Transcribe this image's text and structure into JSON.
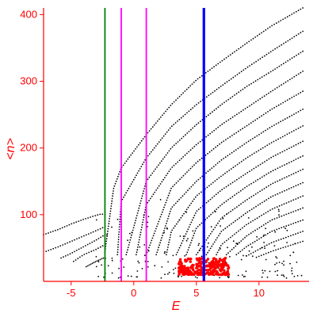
{
  "chart_data": {
    "type": "scatter",
    "title": "",
    "xlabel": "E",
    "ylabel": "<n>",
    "xlim": [
      -7.2,
      14
    ],
    "ylim": [
      0,
      410
    ],
    "grid": false,
    "legend": "none",
    "xticks": [
      -5,
      0,
      5,
      10
    ],
    "xtick_labels": [
      "-5",
      "0",
      "5",
      "10"
    ],
    "yticks": [
      100,
      200,
      300,
      400
    ],
    "ytick_labels": [
      "100",
      "200",
      "300",
      "400"
    ],
    "colors": {
      "axis": "#ff0000",
      "points": "#000000",
      "highlight_points": "#ff0000",
      "line_green": "#008000",
      "line_magenta": "#ff00ff",
      "line_blue": "#0000ff"
    },
    "vertical_lines": [
      {
        "x": -2.3,
        "color": "#008000"
      },
      {
        "x": -1.0,
        "color": "#ff00ff"
      },
      {
        "x": 1.0,
        "color": "#ff00ff"
      },
      {
        "x": 5.6,
        "color": "#0000ff"
      }
    ],
    "series": [
      {
        "x": [
          -7.2,
          -6,
          -5,
          -4,
          -3,
          -2.6,
          -2.3
        ],
        "values": [
          70,
          78,
          86,
          93,
          99,
          101,
          100
        ]
      },
      {
        "x": [
          -7.0,
          -6,
          -5,
          -4,
          -3,
          -2.3
        ],
        "values": [
          45,
          52,
          60,
          68,
          76,
          82
        ]
      },
      {
        "x": [
          -5.8,
          -5,
          -4,
          -3,
          -2.3
        ],
        "values": [
          35,
          42,
          52,
          62,
          70
        ]
      },
      {
        "x": [
          -4.8,
          -4,
          -3,
          -2.3
        ],
        "values": [
          30,
          40,
          48,
          55
        ]
      },
      {
        "x": [
          -3.8,
          -3,
          -2.3
        ],
        "values": [
          22,
          30,
          36
        ]
      },
      {
        "x": [
          -2.3,
          -1.6,
          -1,
          1,
          3,
          5,
          7,
          9,
          11,
          13.5
        ],
        "values": [
          45,
          140,
          170,
          220,
          265,
          302,
          330,
          357,
          383,
          410
        ]
      },
      {
        "x": [
          -1.3,
          -1,
          1,
          3,
          5,
          7,
          9,
          11,
          13.5
        ],
        "values": [
          40,
          120,
          185,
          232,
          265,
          293,
          320,
          345,
          375
        ]
      },
      {
        "x": [
          -0.6,
          1,
          3,
          5,
          7,
          9,
          11,
          13.5
        ],
        "values": [
          40,
          150,
          200,
          235,
          265,
          292,
          315,
          345
        ]
      },
      {
        "x": [
          0.2,
          1,
          3,
          5,
          7,
          9,
          11,
          13.5
        ],
        "values": [
          40,
          115,
          170,
          205,
          235,
          260,
          285,
          315
        ]
      },
      {
        "x": [
          1.0,
          3,
          5,
          7,
          9,
          11,
          13.5
        ],
        "values": [
          40,
          140,
          178,
          208,
          233,
          258,
          285
        ]
      },
      {
        "x": [
          1.8,
          3,
          5,
          7,
          9,
          11,
          13.5
        ],
        "values": [
          40,
          110,
          150,
          182,
          208,
          232,
          258
        ]
      },
      {
        "x": [
          2.6,
          3,
          5,
          7,
          9,
          11,
          13.5
        ],
        "values": [
          40,
          75,
          128,
          158,
          185,
          208,
          233
        ]
      },
      {
        "x": [
          3.4,
          5,
          7,
          9,
          11,
          13.5
        ],
        "values": [
          40,
          105,
          137,
          162,
          186,
          210
        ]
      },
      {
        "x": [
          4.2,
          5,
          7,
          9,
          11,
          13.5
        ],
        "values": [
          40,
          80,
          115,
          142,
          165,
          188
        ]
      },
      {
        "x": [
          5.0,
          7,
          9,
          11,
          13.5
        ],
        "values": [
          40,
          95,
          122,
          146,
          168
        ]
      },
      {
        "x": [
          5.8,
          7,
          9,
          11,
          13.5
        ],
        "values": [
          40,
          75,
          103,
          127,
          148
        ]
      },
      {
        "x": [
          6.6,
          7,
          9,
          11,
          13.5
        ],
        "values": [
          40,
          55,
          85,
          108,
          128
        ]
      },
      {
        "x": [
          7.4,
          9,
          11,
          13.5
        ],
        "values": [
          40,
          68,
          92,
          110
        ]
      },
      {
        "x": [
          8.2,
          9,
          11,
          13.5
        ],
        "values": [
          40,
          52,
          75,
          92
        ]
      },
      {
        "x": [
          9.0,
          11,
          13.5
        ],
        "values": [
          38,
          58,
          75
        ]
      },
      {
        "x": [
          9.8,
          11,
          13.5
        ],
        "values": [
          36,
          45,
          60
        ]
      }
    ],
    "highlight_cluster": {
      "color": "#ff0000",
      "x_range": [
        3.6,
        7.6
      ],
      "y_range": [
        10,
        35
      ],
      "n": 260
    }
  }
}
